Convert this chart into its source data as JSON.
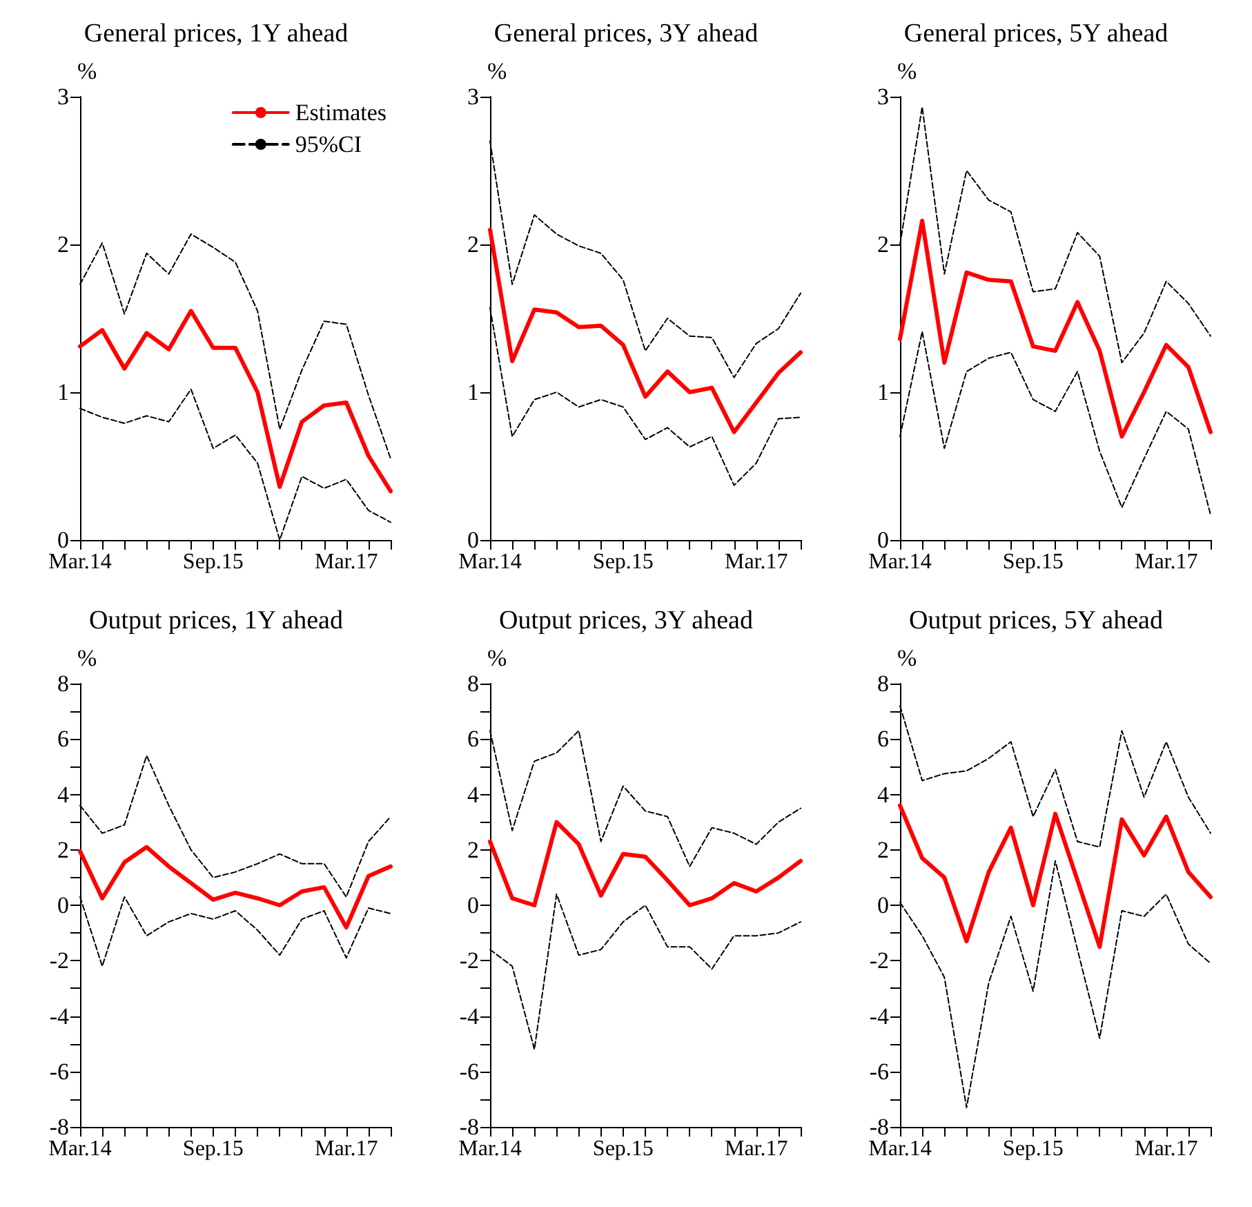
{
  "chart_data": [
    {
      "type": "line",
      "title": "General prices, 1Y ahead",
      "ylabel": "%",
      "categories": [
        "Mar.14",
        null,
        null,
        null,
        null,
        null,
        "Sep.15",
        null,
        null,
        null,
        null,
        null,
        "Mar.17",
        null,
        null
      ],
      "ylim": [
        0,
        3
      ],
      "yticks": [
        0,
        1,
        2,
        3
      ],
      "legend": "top right",
      "marker": "none",
      "grid": false,
      "series": [
        {
          "name": "Estimates",
          "color": "#ff0000",
          "line_style": "solid",
          "values": [
            1.31,
            1.42,
            1.16,
            1.4,
            1.29,
            1.55,
            1.3,
            1.3,
            1.0,
            0.36,
            0.8,
            0.91,
            0.93,
            0.57,
            0.33
          ]
        },
        {
          "name": "95%CI",
          "color": "#000000",
          "line_style": "dashed",
          "values": [
            1.73,
            2.01,
            1.53,
            1.94,
            1.8,
            2.07,
            1.98,
            1.88,
            1.55,
            0.75,
            1.15,
            1.48,
            1.46,
            0.98,
            0.55
          ]
        },
        {
          "color": "#000000",
          "line_style": "dashed",
          "values": [
            0.89,
            0.83,
            0.79,
            0.84,
            0.8,
            1.02,
            0.62,
            0.71,
            0.52,
            0.0,
            0.43,
            0.35,
            0.41,
            0.2,
            0.12
          ]
        }
      ]
    },
    {
      "type": "line",
      "title": "General prices, 3Y ahead",
      "ylabel": "%",
      "categories": [
        "Mar.14",
        null,
        null,
        null,
        null,
        null,
        "Sep.15",
        null,
        null,
        null,
        null,
        null,
        "Mar.17",
        null,
        null
      ],
      "ylim": [
        0,
        3
      ],
      "yticks": [
        0,
        1,
        2,
        3
      ],
      "marker": "none",
      "grid": false,
      "series": [
        {
          "color": "#ff0000",
          "line_style": "solid",
          "values": [
            2.1,
            1.21,
            1.56,
            1.54,
            1.44,
            1.45,
            1.32,
            0.97,
            1.14,
            1.0,
            1.03,
            0.73,
            0.93,
            1.13,
            1.27
          ]
        },
        {
          "color": "#000000",
          "line_style": "dashed",
          "values": [
            2.7,
            1.73,
            2.2,
            2.07,
            1.99,
            1.94,
            1.76,
            1.28,
            1.5,
            1.38,
            1.37,
            1.1,
            1.33,
            1.43,
            1.67
          ]
        },
        {
          "color": "#000000",
          "line_style": "dashed",
          "values": [
            1.57,
            0.7,
            0.95,
            1.0,
            0.9,
            0.95,
            0.9,
            0.68,
            0.76,
            0.63,
            0.7,
            0.37,
            0.52,
            0.82,
            0.83
          ]
        }
      ]
    },
    {
      "type": "line",
      "title": "General prices, 5Y ahead",
      "ylabel": "%",
      "categories": [
        "Mar.14",
        null,
        null,
        null,
        null,
        null,
        "Sep.15",
        null,
        null,
        null,
        null,
        null,
        "Mar.17",
        null,
        null
      ],
      "ylim": [
        0,
        3
      ],
      "yticks": [
        0,
        1,
        2,
        3
      ],
      "marker": "none",
      "grid": false,
      "series": [
        {
          "color": "#ff0000",
          "line_style": "solid",
          "values": [
            1.36,
            2.16,
            1.2,
            1.81,
            1.76,
            1.75,
            1.31,
            1.28,
            1.61,
            1.28,
            0.7,
            1.0,
            1.32,
            1.17,
            0.73
          ]
        },
        {
          "color": "#000000",
          "line_style": "dashed",
          "values": [
            2.0,
            2.93,
            1.8,
            2.5,
            2.3,
            2.22,
            1.68,
            1.7,
            2.08,
            1.92,
            1.2,
            1.4,
            1.75,
            1.6,
            1.38
          ]
        },
        {
          "color": "#000000",
          "line_style": "dashed",
          "values": [
            0.7,
            1.41,
            0.62,
            1.14,
            1.23,
            1.27,
            0.95,
            0.87,
            1.14,
            0.6,
            0.22,
            0.55,
            0.87,
            0.75,
            0.17
          ]
        }
      ]
    },
    {
      "type": "line",
      "title": "Output prices, 1Y ahead",
      "ylabel": "%",
      "categories": [
        "Mar.14",
        null,
        null,
        null,
        null,
        null,
        "Sep.15",
        null,
        null,
        null,
        null,
        null,
        "Mar.17",
        null,
        null
      ],
      "ylim": [
        -8,
        8
      ],
      "yticks": [
        -8,
        {
          "value": -7,
          "label": null
        },
        -6,
        {
          "value": -5,
          "label": null
        },
        -4,
        {
          "value": -3,
          "label": null
        },
        -2,
        {
          "value": -1,
          "label": null
        },
        0,
        {
          "value": 1,
          "label": null
        },
        2,
        {
          "value": 3,
          "label": null
        },
        4,
        {
          "value": 5,
          "label": null
        },
        6,
        {
          "value": 7,
          "label": null
        },
        8
      ],
      "marker": "none",
      "grid": false,
      "series": [
        {
          "color": "#ff0000",
          "line_style": "solid",
          "values": [
            1.95,
            0.25,
            1.55,
            2.1,
            1.4,
            0.8,
            0.2,
            0.45,
            0.25,
            0.0,
            0.5,
            0.65,
            -0.8,
            1.05,
            1.4
          ]
        },
        {
          "color": "#000000",
          "line_style": "dashed",
          "values": [
            3.6,
            2.6,
            2.9,
            5.4,
            3.6,
            2.0,
            1.0,
            1.2,
            1.5,
            1.85,
            1.5,
            1.5,
            0.3,
            2.3,
            3.2
          ]
        },
        {
          "color": "#000000",
          "line_style": "dashed",
          "values": [
            0.3,
            -2.2,
            0.3,
            -1.1,
            -0.6,
            -0.3,
            -0.5,
            -0.2,
            -0.9,
            -1.8,
            -0.5,
            -0.2,
            -1.9,
            -0.1,
            -0.3
          ]
        }
      ]
    },
    {
      "type": "line",
      "title": "Output prices, 3Y ahead",
      "ylabel": "%",
      "categories": [
        "Mar.14",
        null,
        null,
        null,
        null,
        null,
        "Sep.15",
        null,
        null,
        null,
        null,
        null,
        "Mar.17",
        null,
        null
      ],
      "ylim": [
        -8,
        8
      ],
      "yticks": [
        -8,
        {
          "value": -7,
          "label": null
        },
        -6,
        {
          "value": -5,
          "label": null
        },
        -4,
        {
          "value": -3,
          "label": null
        },
        -2,
        {
          "value": -1,
          "label": null
        },
        0,
        {
          "value": 1,
          "label": null
        },
        2,
        {
          "value": 3,
          "label": null
        },
        4,
        {
          "value": 5,
          "label": null
        },
        6,
        {
          "value": 7,
          "label": null
        },
        8
      ],
      "marker": "none",
      "grid": false,
      "series": [
        {
          "color": "#ff0000",
          "line_style": "solid",
          "values": [
            2.3,
            0.25,
            0.0,
            3.0,
            2.2,
            0.35,
            1.85,
            1.75,
            0.9,
            0.0,
            0.25,
            0.8,
            0.5,
            1.0,
            1.6
          ]
        },
        {
          "color": "#000000",
          "line_style": "dashed",
          "values": [
            6.3,
            2.7,
            5.2,
            5.5,
            6.3,
            2.3,
            4.3,
            3.4,
            3.2,
            1.4,
            2.8,
            2.6,
            2.2,
            3.0,
            3.5
          ]
        },
        {
          "color": "#000000",
          "line_style": "dashed",
          "values": [
            -1.6,
            -2.2,
            -5.2,
            0.4,
            -1.8,
            -1.6,
            -0.6,
            0.0,
            -1.5,
            -1.5,
            -2.3,
            -1.1,
            -1.1,
            -1.0,
            -0.6
          ]
        }
      ]
    },
    {
      "type": "line",
      "title": "Output prices, 5Y ahead",
      "ylabel": "%",
      "categories": [
        "Mar.14",
        null,
        null,
        null,
        null,
        null,
        "Sep.15",
        null,
        null,
        null,
        null,
        null,
        "Mar.17",
        null,
        null
      ],
      "ylim": [
        -8,
        8
      ],
      "yticks": [
        -8,
        {
          "value": -7,
          "label": null
        },
        -6,
        {
          "value": -5,
          "label": null
        },
        -4,
        {
          "value": -3,
          "label": null
        },
        -2,
        {
          "value": -1,
          "label": null
        },
        0,
        {
          "value": 1,
          "label": null
        },
        2,
        {
          "value": 3,
          "label": null
        },
        4,
        {
          "value": 5,
          "label": null
        },
        6,
        {
          "value": 7,
          "label": null
        },
        8
      ],
      "marker": "none",
      "grid": false,
      "series": [
        {
          "color": "#ff0000",
          "line_style": "solid",
          "values": [
            3.6,
            1.7,
            1.0,
            -1.3,
            1.2,
            2.8,
            0.0,
            3.3,
            0.9,
            -1.5,
            3.1,
            1.8,
            3.2,
            1.2,
            0.3
          ]
        },
        {
          "color": "#000000",
          "line_style": "dashed",
          "values": [
            7.2,
            4.5,
            4.75,
            4.85,
            5.3,
            5.9,
            3.2,
            4.9,
            2.3,
            2.1,
            6.3,
            3.9,
            5.9,
            3.9,
            2.6
          ]
        },
        {
          "color": "#000000",
          "line_style": "dashed",
          "values": [
            0.1,
            -1.1,
            -2.6,
            -7.3,
            -2.8,
            -0.4,
            -3.1,
            1.6,
            -1.6,
            -4.8,
            -0.2,
            -0.4,
            0.4,
            -1.4,
            -2.1
          ]
        }
      ]
    }
  ]
}
